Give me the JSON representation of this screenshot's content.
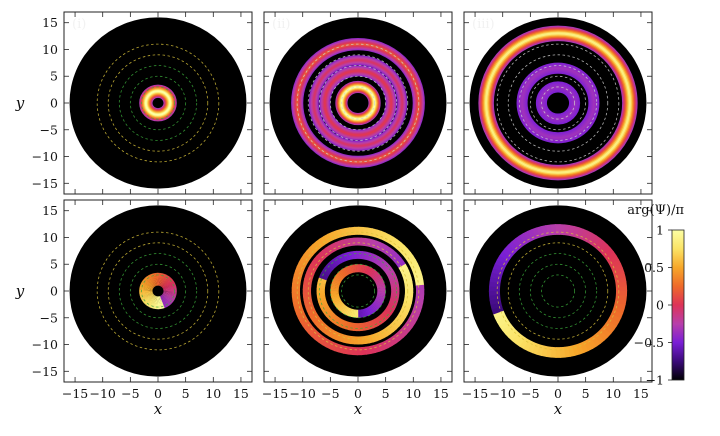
{
  "chart_data": {
    "type": "heatmap",
    "layout": {
      "rows": 2,
      "cols": 3
    },
    "xlabel": "x",
    "ylabel": "y",
    "xlim": [
      -17,
      17
    ],
    "ylim": [
      -17,
      17
    ],
    "xticks": [
      -15,
      -10,
      -5,
      0,
      5,
      10,
      15
    ],
    "yticks": [
      15,
      10,
      5,
      0,
      -5,
      -10,
      -15
    ],
    "xtick_labels": [
      "−15",
      "−10",
      "−5",
      "0",
      "5",
      "10",
      "15"
    ],
    "ytick_labels": [
      "15",
      "10",
      "5",
      "0",
      "−5",
      "−10",
      "−15"
    ],
    "disk_radius": 16,
    "panel_labels": [
      "(i)",
      "(ii)",
      "(iii)"
    ],
    "guide_circles": {
      "radii": [
        3,
        5,
        7,
        9,
        11
      ],
      "colors": [
        "#3aa83a",
        "#3aa83a",
        "#3aa83a",
        "#d8c23a",
        "#d8c23a"
      ]
    },
    "density_panels": [
      {
        "label": "(i)",
        "rings": [
          {
            "radius": 2.2,
            "width": 1.2,
            "intensity": 1.0
          }
        ]
      },
      {
        "label": "(ii)",
        "rings": [
          {
            "radius": 3.0,
            "width": 1.1,
            "intensity": 1.0
          },
          {
            "radius": 6.0,
            "width": 1.0,
            "intensity": 0.35
          },
          {
            "radius": 8.0,
            "width": 0.9,
            "intensity": 0.3
          },
          {
            "radius": 11.0,
            "width": 1.1,
            "intensity": 0.45
          }
        ]
      },
      {
        "label": "(iii)",
        "rings": [
          {
            "radius": 3.0,
            "width": 1.0,
            "intensity": 0.08
          },
          {
            "radius": 6.5,
            "width": 1.0,
            "intensity": 0.1
          },
          {
            "radius": 13.0,
            "width": 1.4,
            "intensity": 0.9
          }
        ]
      }
    ],
    "phase_panels": [
      {
        "segments": [
          {
            "r_in": 1.0,
            "r_out": 3.4,
            "phase_start": -0.4,
            "phase_end": 1.0,
            "cut_angle_deg": -70
          }
        ]
      },
      {
        "segments": [
          {
            "r_in": 3.5,
            "r_out": 5.0,
            "phase_start": -0.6,
            "phase_end": 0.8,
            "cut_angle_deg": -90
          },
          {
            "r_in": 6.0,
            "r_out": 7.5,
            "phase_start": 0.6,
            "phase_end": -0.7,
            "cut_angle_deg": 160
          },
          {
            "r_in": 8.5,
            "r_out": 10.0,
            "phase_start": -0.4,
            "phase_end": 0.9,
            "cut_angle_deg": 30
          },
          {
            "r_in": 10.5,
            "r_out": 12.0,
            "phase_start": 0.9,
            "phase_end": -0.3,
            "cut_angle_deg": 5
          }
        ]
      },
      {
        "segments": [
          {
            "r_in": 10.5,
            "r_out": 12.5,
            "phase_start": 0.9,
            "phase_end": -0.75,
            "cut_angle_deg": 200
          }
        ]
      }
    ],
    "colorbar": {
      "title": "arg(Ψ)/π",
      "range": [
        -1,
        1
      ],
      "ticks": [
        1,
        0.5,
        0,
        -0.5,
        -1
      ],
      "tick_labels": [
        "1",
        "0.5",
        "0",
        "−0.5",
        "−1"
      ],
      "colormap": [
        "#000004",
        "#3b0a7a",
        "#7a1fd6",
        "#b83faa",
        "#dd3358",
        "#ee6a2a",
        "#f7a72a",
        "#fbe366",
        "#fcffa4"
      ]
    }
  }
}
